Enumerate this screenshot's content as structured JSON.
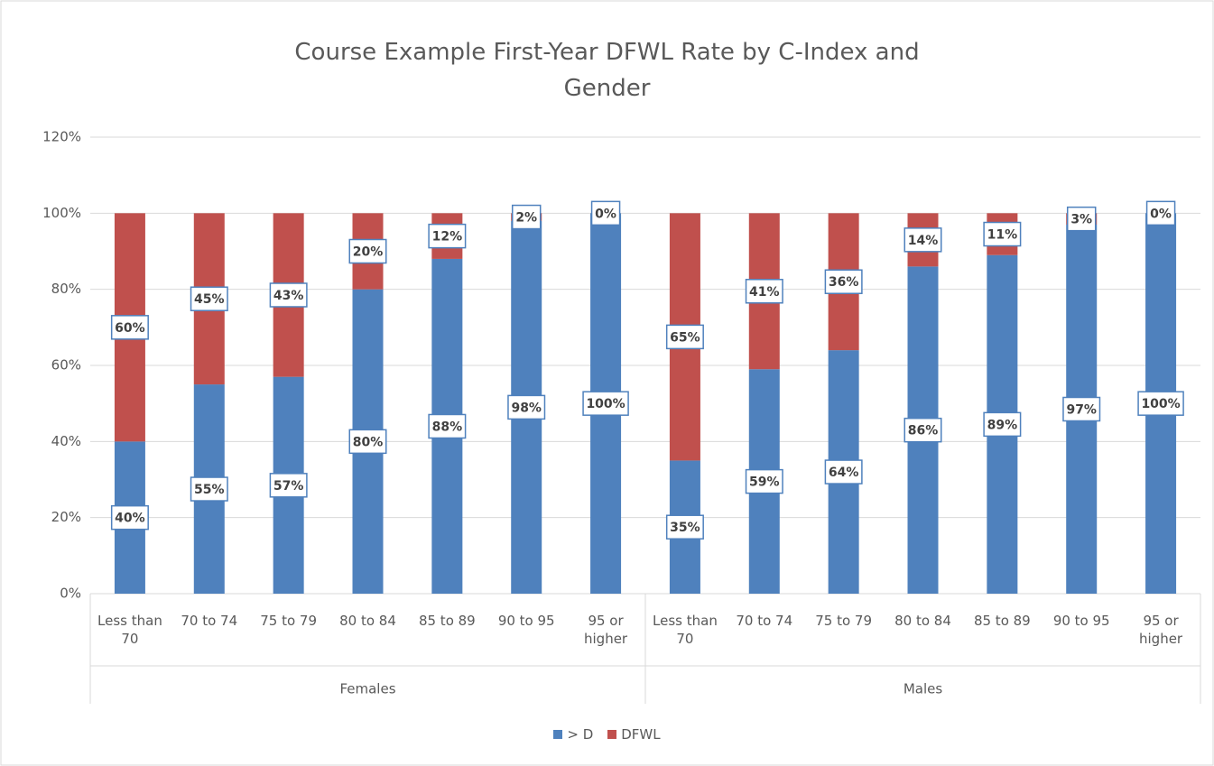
{
  "chart_data": {
    "type": "stacked_bar",
    "title": "Course Example First-Year DFWL Rate by C-Index and Gender",
    "groups": [
      "Females",
      "Males"
    ],
    "categories": [
      "Less than 70",
      "70 to 74",
      "75 to 79",
      "80 to 84",
      "85 to 89",
      "90 to 95",
      "95 or higher",
      "Less than 70",
      "70 to 74",
      "75 to 79",
      "80 to 84",
      "85 to 89",
      "90 to 95",
      "95 or higher"
    ],
    "series": [
      {
        "name": "> D",
        "color": "#4f81bd",
        "values": [
          40,
          55,
          57,
          80,
          88,
          98,
          100,
          35,
          59,
          64,
          86,
          89,
          97,
          100
        ],
        "value_labels": [
          "40%",
          "55%",
          "57%",
          "80%",
          "88%",
          "98%",
          "100%",
          "35%",
          "59%",
          "64%",
          "86%",
          "89%",
          "97%",
          "100%"
        ]
      },
      {
        "name": "DFWL",
        "color": "#c0504d",
        "values": [
          60,
          45,
          43,
          20,
          12,
          2,
          0,
          65,
          41,
          36,
          14,
          11,
          3,
          0
        ],
        "value_labels": [
          "60%",
          "45%",
          "43%",
          "20%",
          "12%",
          "2%",
          "0%",
          "65%",
          "41%",
          "36%",
          "14%",
          "11%",
          "3%",
          "0%"
        ]
      }
    ],
    "ylim": [
      0,
      120
    ],
    "yticks": [
      {
        "value": 0,
        "label": "0%"
      },
      {
        "value": 20,
        "label": "20%"
      },
      {
        "value": 40,
        "label": "40%"
      },
      {
        "value": 60,
        "label": "60%"
      },
      {
        "value": 80,
        "label": "80%"
      },
      {
        "value": 100,
        "label": "100%"
      },
      {
        "value": 120,
        "label": "120%"
      }
    ],
    "grid": true,
    "legend": "bottom"
  }
}
